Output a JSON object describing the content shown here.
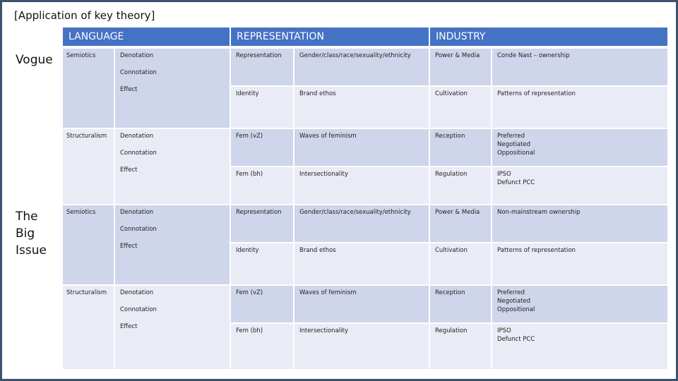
{
  "header": {
    "title": "[Application of key theory]"
  },
  "table": {
    "headers": [
      "LANGUAGE",
      "REPRESENTATION",
      "INDUSTRY"
    ],
    "groups": [
      {
        "name": "Vogue",
        "language": [
          {
            "term": "Semiotics",
            "items": [
              "Denotation",
              "Connotation",
              "Effect"
            ]
          },
          {
            "term": "Structuralism",
            "items": [
              "Denotation",
              "Connotation",
              "Effect"
            ]
          }
        ],
        "rows": [
          [
            "Representation",
            "Gender/class/race/sexuality/ethnicity",
            "Power & Media",
            "Conde Nast – ownership"
          ],
          [
            "Identity",
            "Brand ethos",
            "Cultivation",
            "Patterns of representation"
          ],
          [
            "Fem (vZ)",
            "Waves of feminism",
            "Reception",
            "Preferred\nNegotiated\nOppositional"
          ],
          [
            "Fem (bh)",
            "Intersectionality",
            "Regulation",
            "IPSO\nDefunct PCC"
          ]
        ]
      },
      {
        "name": "The\nBig\nIssue",
        "language": [
          {
            "term": "Semiotics",
            "items": [
              "Denotation",
              "Connotation",
              "Effect"
            ]
          },
          {
            "term": "Structuralism",
            "items": [
              "Denotation",
              "Connotation",
              "Effect"
            ]
          }
        ],
        "rows": [
          [
            "Representation",
            "Gender/class/race/sexuality/ethnicity",
            "Power & Media",
            "Non-mainstream ownership"
          ],
          [
            "Identity",
            "Brand ethos",
            "Cultivation",
            "Patterns of representation"
          ],
          [
            "Fem (vZ)",
            "Waves of feminism",
            "Reception",
            "Preferred\nNegotiated\nOppositional"
          ],
          [
            "Fem (bh)",
            "Intersectionality",
            "Regulation",
            "IPSO\nDefunct PCC"
          ]
        ]
      }
    ]
  }
}
